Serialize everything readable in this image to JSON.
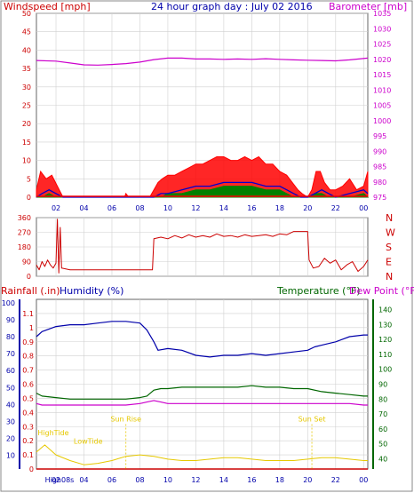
{
  "page": {
    "background": "#ffffff",
    "panel_bg": "#ffffff"
  },
  "colors": {
    "windspeed": "#ff0000",
    "gust": "#ff0000",
    "avg_wind": "#0000cc",
    "wind_green": "#008000",
    "barometer": "#cc00cc",
    "direction": "#cc0000",
    "rainfall": "#cc0000",
    "humidity": "#0000aa",
    "temperature": "#006600",
    "dewpoint": "#cc00cc",
    "tide": "#e6c800",
    "border": "#666666",
    "grid": "#d0d0d0",
    "x_tick": "#0000aa",
    "left_axis_red": "#cc0000",
    "left_axis_blue": "#0000aa",
    "right_axis_green": "#006600",
    "right_axis_magenta": "#cc00cc"
  },
  "chart_data": [
    {
      "panel": "wind_baro",
      "type": "line",
      "title": "24 hour graph day : July 02 2016",
      "left_label": "Windspeed [mph]",
      "right_label": "Barometer [mb]",
      "x_ticks": [
        "02",
        "04",
        "06",
        "08",
        "10",
        "12",
        "14",
        "16",
        "18",
        "20",
        "22",
        "00"
      ],
      "x_tick_hours": [
        2,
        4,
        6,
        8,
        10,
        12,
        14,
        16,
        18,
        20,
        22,
        24
      ],
      "xlim": [
        0.6,
        24.3
      ],
      "left_ticks": [
        "0",
        "5",
        "10",
        "15",
        "20",
        "25",
        "30",
        "35",
        "40",
        "45",
        "50"
      ],
      "left_tick_values": [
        0,
        5,
        10,
        15,
        20,
        25,
        30,
        35,
        40,
        45,
        50
      ],
      "ylim_left": [
        0,
        50
      ],
      "right_ticks": [
        "975",
        "980",
        "985",
        "990",
        "995",
        "1000",
        "1005",
        "1010",
        "1015",
        "1020",
        "1025",
        "1030",
        "1035"
      ],
      "right_tick_values": [
        975,
        980,
        985,
        990,
        995,
        1000,
        1005,
        1010,
        1015,
        1020,
        1025,
        1030,
        1035
      ],
      "ylim_right": [
        975,
        1035
      ],
      "grid": true,
      "series": [
        {
          "name": "Barometer",
          "axis": "right",
          "x": [
            0.6,
            2,
            3,
            4,
            5,
            6,
            7,
            8,
            9,
            10,
            11,
            12,
            13,
            14,
            15,
            16,
            17,
            18,
            19,
            20,
            21,
            22,
            23,
            24.3
          ],
          "values": [
            1019.6,
            1019.4,
            1018.8,
            1018.2,
            1018.1,
            1018.3,
            1018.6,
            1019.1,
            1019.9,
            1020.4,
            1020.4,
            1020.1,
            1020.1,
            1020.0,
            1020.1,
            1020.0,
            1020.2,
            1020.0,
            1019.8,
            1019.7,
            1019.6,
            1019.5,
            1019.8,
            1020.4
          ]
        },
        {
          "name": "Gust",
          "axis": "left",
          "x": [
            0.6,
            0.9,
            1.3,
            1.7,
            2.1,
            2.5,
            3,
            4,
            5,
            6,
            6.9,
            7.0,
            7.2,
            8,
            8.7,
            9.0,
            9.3,
            9.6,
            10,
            10.5,
            11,
            11.5,
            12,
            12.5,
            13,
            13.5,
            14,
            14.5,
            15,
            15.5,
            16,
            16.5,
            17,
            17.5,
            18,
            18.5,
            18.9,
            19.3,
            19.6,
            20.0,
            20.3,
            20.6,
            20.9,
            21.2,
            21.6,
            22,
            22.5,
            23,
            23.5,
            24.0,
            24.3
          ],
          "values": [
            2,
            7,
            5,
            6,
            3,
            0,
            0,
            0,
            0,
            0,
            0,
            1,
            0,
            0,
            0,
            2,
            4,
            5,
            6,
            6,
            7,
            8,
            9,
            9,
            10,
            11,
            11,
            10,
            10,
            11,
            10,
            11,
            9,
            9,
            7,
            6,
            4,
            2,
            1,
            0,
            2,
            7,
            7,
            4,
            2,
            2,
            3,
            5,
            2,
            3,
            7
          ]
        },
        {
          "name": "Average wind",
          "axis": "left",
          "x": [
            0.6,
            1,
            1.5,
            2,
            2.5,
            3,
            9,
            9.5,
            10,
            11,
            12,
            13,
            14,
            15,
            16,
            17,
            18,
            18.5,
            19,
            19.5,
            20,
            20.5,
            21,
            21.5,
            22,
            23,
            24,
            24.3
          ],
          "values": [
            0,
            1,
            2,
            1,
            0,
            0,
            0,
            1,
            1,
            2,
            3,
            3,
            4,
            4,
            4,
            3,
            3,
            2,
            1,
            0,
            0,
            1,
            2,
            1,
            0,
            1,
            2,
            1
          ]
        },
        {
          "name": "Wind speed",
          "axis": "left",
          "x": [
            0.6,
            1,
            1.5,
            2,
            2.5,
            3,
            9,
            9.5,
            10,
            11,
            12,
            13,
            14,
            15,
            16,
            17,
            18,
            18.5,
            19,
            19.5,
            20,
            20.5,
            21,
            21.5,
            22,
            23,
            24,
            24.3
          ],
          "values": [
            0,
            0,
            1,
            0,
            0,
            0,
            0,
            0,
            1,
            1,
            2,
            2,
            3,
            3,
            3,
            2,
            2,
            1,
            0,
            0,
            0,
            1,
            1,
            0,
            0,
            0,
            1,
            0
          ]
        }
      ]
    },
    {
      "panel": "direction",
      "type": "line",
      "left_ticks": [
        "360",
        "270",
        "180",
        "90",
        "0"
      ],
      "left_tick_values": [
        360,
        270,
        180,
        90,
        0
      ],
      "ylim": [
        0,
        360
      ],
      "right_labels": [
        "N",
        "W",
        "S",
        "E",
        "N"
      ],
      "xlim": [
        0.6,
        24.3
      ],
      "grid": true,
      "series": [
        {
          "name": "Wind direction",
          "x": [
            0.6,
            0.8,
            1.0,
            1.2,
            1.4,
            1.6,
            1.8,
            2.0,
            2.1,
            2.2,
            2.3,
            2.4,
            3,
            4,
            5,
            6,
            7,
            8,
            8.9,
            9.0,
            9.5,
            10,
            10.5,
            11,
            11.5,
            12,
            12.5,
            13,
            13.5,
            14,
            14.5,
            15,
            15.5,
            16,
            16.5,
            17,
            17.5,
            18,
            18.5,
            19,
            19.5,
            20,
            20.1,
            20.4,
            20.8,
            21.2,
            21.6,
            22,
            22.4,
            22.8,
            23.2,
            23.6,
            24.0,
            24.3
          ],
          "values": [
            70,
            40,
            90,
            60,
            100,
            70,
            50,
            80,
            350,
            20,
            300,
            50,
            40,
            40,
            40,
            40,
            40,
            40,
            40,
            230,
            240,
            230,
            250,
            235,
            255,
            240,
            250,
            240,
            260,
            245,
            250,
            240,
            255,
            245,
            250,
            255,
            245,
            260,
            255,
            275,
            275,
            275,
            100,
            50,
            60,
            110,
            80,
            100,
            40,
            70,
            90,
            30,
            60,
            100
          ]
        }
      ]
    },
    {
      "panel": "rain_hum_temp",
      "type": "line",
      "left_label": "Rainfall (.in)",
      "left_label_2": "Humidity (%)",
      "right_label": "Temperature (°F)",
      "right_label_2": "Dew Point (°F)",
      "left_rain_ticks": [
        "0",
        "0.1",
        "0.2",
        "0.3",
        "0.4",
        "0.5",
        "0.6",
        "0.7",
        "0.8",
        "0.9",
        "1",
        "1.1"
      ],
      "left_rain_values": [
        0,
        0.1,
        0.2,
        0.3,
        0.4,
        0.5,
        0.6,
        0.7,
        0.8,
        0.9,
        1.0,
        1.1
      ],
      "ylim_rain": [
        0,
        1.2
      ],
      "left_hum_ticks": [
        "10",
        "20",
        "30",
        "40",
        "50",
        "60",
        "70",
        "80",
        "90",
        "100"
      ],
      "left_hum_values": [
        10,
        20,
        30,
        40,
        50,
        60,
        70,
        80,
        90,
        100
      ],
      "ylim_hum": [
        2,
        102
      ],
      "right_ticks": [
        "40",
        "50",
        "60",
        "70",
        "80",
        "90",
        "100",
        "110",
        "120",
        "130",
        "140"
      ],
      "right_tick_values": [
        40,
        50,
        60,
        70,
        80,
        90,
        100,
        110,
        120,
        130,
        140
      ],
      "ylim_temp": [
        33,
        147
      ],
      "x_ticks": [
        "02",
        "04",
        "06",
        "08",
        "10",
        "12",
        "14",
        "16",
        "18",
        "20",
        "22",
        "00"
      ],
      "x_tick_hours": [
        2,
        4,
        6,
        8,
        10,
        12,
        14,
        16,
        18,
        20,
        22,
        24
      ],
      "xlim": [
        0.6,
        24.3
      ],
      "grid": true,
      "annotations": [
        {
          "text": "HighTide",
          "x": 1.8,
          "y_frac": 0.8
        },
        {
          "text": "LowTide",
          "x": 4.3,
          "y_frac": 0.85
        },
        {
          "text": "Sun Rise",
          "x": 7.0,
          "y_frac": 0.72
        },
        {
          "text": "Sun Set",
          "x": 20.3,
          "y_frac": 0.72
        },
        {
          "text": "High08s",
          "x": 2.1,
          "y_frac": 1.0
        }
      ],
      "series": [
        {
          "name": "Humidity",
          "axis": "hum",
          "x": [
            0.6,
            1,
            2,
            3,
            4,
            5,
            6,
            7,
            8,
            8.5,
            9.0,
            9.3,
            10,
            11,
            12,
            13,
            14,
            15,
            16,
            17,
            18,
            19,
            20,
            20.5,
            21,
            22,
            23,
            24,
            24.3
          ],
          "values": [
            80,
            83,
            86,
            87,
            87,
            88,
            89,
            89,
            88,
            84,
            77,
            72,
            73,
            72,
            69,
            68,
            69,
            69,
            70,
            69,
            70,
            71,
            72,
            74,
            75,
            77,
            80,
            81,
            81
          ]
        },
        {
          "name": "Temperature",
          "axis": "temp",
          "x": [
            0.6,
            1,
            2,
            3,
            4,
            5,
            6,
            7,
            8,
            8.5,
            9.0,
            9.5,
            10,
            11,
            12,
            13,
            14,
            15,
            16,
            17,
            18,
            19,
            20,
            21,
            22,
            23,
            24,
            24.3
          ],
          "values": [
            84,
            82,
            81,
            80,
            80,
            80,
            80,
            80,
            81,
            82,
            86,
            87,
            87,
            88,
            88,
            88,
            88,
            88,
            89,
            88,
            88,
            87,
            87,
            85,
            84,
            83,
            82,
            82
          ]
        },
        {
          "name": "Dew Point",
          "axis": "temp",
          "x": [
            0.6,
            1,
            2,
            3,
            4,
            5,
            6,
            7,
            8,
            8.5,
            9.0,
            9.5,
            10,
            11,
            12,
            13,
            14,
            15,
            16,
            17,
            18,
            19,
            20,
            21,
            22,
            23,
            24,
            24.3
          ],
          "values": [
            77,
            76,
            76,
            76,
            76,
            76,
            76,
            76,
            77,
            78,
            79,
            78,
            77,
            77,
            77,
            77,
            77,
            77,
            77,
            77,
            77,
            77,
            77,
            77,
            77,
            77,
            76,
            76
          ]
        },
        {
          "name": "Rainfall",
          "axis": "rain",
          "x": [
            0.6,
            24.3
          ],
          "values": [
            0,
            0
          ]
        },
        {
          "name": "Tide",
          "axis": "rain",
          "x": [
            0.6,
            1.2,
            2,
            3,
            4,
            5,
            6,
            7,
            8,
            9,
            10,
            11,
            12,
            13,
            14,
            15,
            16,
            17,
            18,
            19,
            20,
            21,
            22,
            23,
            24,
            24.3
          ],
          "values": [
            0.12,
            0.17,
            0.1,
            0.06,
            0.03,
            0.04,
            0.06,
            0.09,
            0.1,
            0.09,
            0.07,
            0.06,
            0.06,
            0.07,
            0.08,
            0.08,
            0.07,
            0.06,
            0.06,
            0.06,
            0.07,
            0.08,
            0.08,
            0.07,
            0.06,
            0.06
          ]
        }
      ]
    }
  ]
}
